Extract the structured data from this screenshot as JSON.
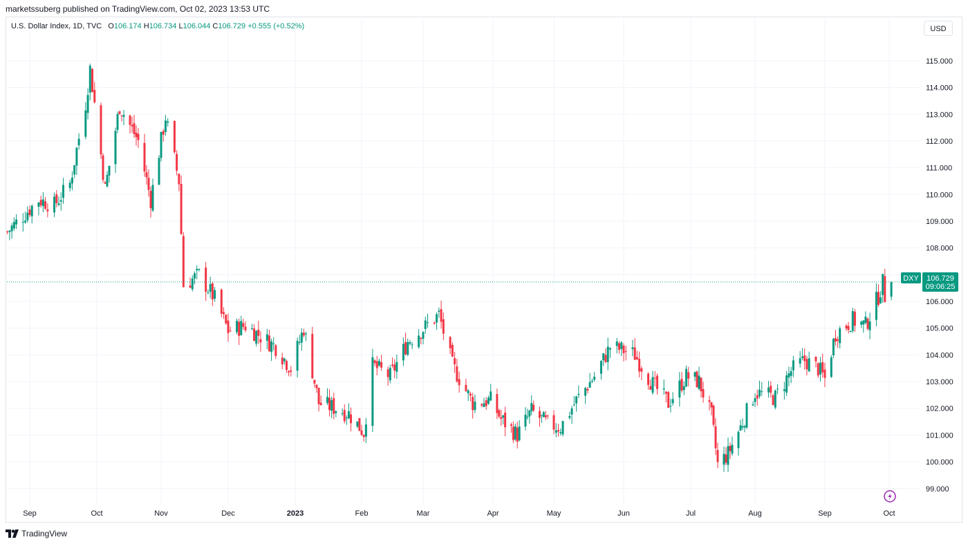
{
  "header": {
    "published_text": "marketssuberg published on TradingView.com, Oct 02, 2023 13:53 UTC"
  },
  "legend": {
    "symbol": "U.S. Dollar Index, 1D, TVC",
    "open_label": "O",
    "open": "106.174",
    "high_label": "H",
    "high": "106.734",
    "low_label": "L",
    "low": "106.044",
    "close_label": "C",
    "close": "106.729",
    "change": "+0.555 (+0.52%)"
  },
  "currency_button": "USD",
  "price_tag": {
    "ticker": "DXY",
    "price": "106.729",
    "countdown": "09:06:25"
  },
  "footer": {
    "brand": "TradingView"
  },
  "colors": {
    "up": "#089981",
    "down": "#f23645",
    "grid": "#f0f3fa",
    "price_line": "#089981",
    "alert_icon": "#9c27b0"
  },
  "chart_data": {
    "type": "candlestick",
    "symbol": "DXY",
    "interval": "1D",
    "ylim": [
      98.4,
      116.6
    ],
    "y_ticks": [
      "99.000",
      "100.000",
      "101.000",
      "102.000",
      "103.000",
      "104.000",
      "105.000",
      "106.000",
      "107.000",
      "108.000",
      "109.000",
      "110.000",
      "111.000",
      "112.000",
      "113.000",
      "114.000",
      "115.000"
    ],
    "x_ticks": [
      {
        "label": "Sep",
        "date": "2022-09-01"
      },
      {
        "label": "Oct",
        "date": "2022-10-01"
      },
      {
        "label": "Nov",
        "date": "2022-11-01"
      },
      {
        "label": "Dec",
        "date": "2022-12-01"
      },
      {
        "label": "2023",
        "date": "2023-01-01",
        "bold": true
      },
      {
        "label": "Feb",
        "date": "2023-02-01"
      },
      {
        "label": "Mar",
        "date": "2023-03-01"
      },
      {
        "label": "Apr",
        "date": "2023-04-01"
      },
      {
        "label": "May",
        "date": "2023-05-01"
      },
      {
        "label": "Jun",
        "date": "2023-06-01"
      },
      {
        "label": "Jul",
        "date": "2023-07-01"
      },
      {
        "label": "Aug",
        "date": "2023-08-01"
      },
      {
        "label": "Sep",
        "date": "2023-09-01"
      },
      {
        "label": "Oct",
        "date": "2023-10-01"
      }
    ],
    "last_price": 106.729,
    "approx_closes": [
      {
        "date": "2022-08-22",
        "close": 108.6
      },
      {
        "date": "2022-08-29",
        "close": 109.2
      },
      {
        "date": "2022-09-05",
        "close": 109.8
      },
      {
        "date": "2022-09-12",
        "close": 109.6
      },
      {
        "date": "2022-09-19",
        "close": 110.4
      },
      {
        "date": "2022-09-26",
        "close": 113.4
      },
      {
        "date": "2022-09-28",
        "close": 114.7
      },
      {
        "date": "2022-10-03",
        "close": 111.5
      },
      {
        "date": "2022-10-05",
        "close": 110.2
      },
      {
        "date": "2022-10-12",
        "close": 113.3
      },
      {
        "date": "2022-10-21",
        "close": 112.0
      },
      {
        "date": "2022-10-27",
        "close": 109.8
      },
      {
        "date": "2022-11-03",
        "close": 112.9
      },
      {
        "date": "2022-11-09",
        "close": 110.5
      },
      {
        "date": "2022-11-11",
        "close": 106.6
      },
      {
        "date": "2022-11-18",
        "close": 107.0
      },
      {
        "date": "2022-11-25",
        "close": 106.1
      },
      {
        "date": "2022-12-01",
        "close": 104.9
      },
      {
        "date": "2022-12-09",
        "close": 105.1
      },
      {
        "date": "2022-12-16",
        "close": 104.7
      },
      {
        "date": "2022-12-23",
        "close": 104.3
      },
      {
        "date": "2022-12-30",
        "close": 103.5
      },
      {
        "date": "2023-01-05",
        "close": 105.0
      },
      {
        "date": "2023-01-12",
        "close": 102.2
      },
      {
        "date": "2023-01-20",
        "close": 102.0
      },
      {
        "date": "2023-01-26",
        "close": 101.8
      },
      {
        "date": "2023-02-02",
        "close": 101.1
      },
      {
        "date": "2023-02-06",
        "close": 103.6
      },
      {
        "date": "2023-02-14",
        "close": 103.2
      },
      {
        "date": "2023-02-22",
        "close": 104.5
      },
      {
        "date": "2023-02-28",
        "close": 104.9
      },
      {
        "date": "2023-03-08",
        "close": 105.5
      },
      {
        "date": "2023-03-14",
        "close": 103.6
      },
      {
        "date": "2023-03-23",
        "close": 102.2
      },
      {
        "date": "2023-03-31",
        "close": 102.3
      },
      {
        "date": "2023-04-05",
        "close": 101.6
      },
      {
        "date": "2023-04-13",
        "close": 101.0
      },
      {
        "date": "2023-04-20",
        "close": 101.9
      },
      {
        "date": "2023-04-28",
        "close": 101.4
      },
      {
        "date": "2023-05-04",
        "close": 101.3
      },
      {
        "date": "2023-05-11",
        "close": 102.3
      },
      {
        "date": "2023-05-19",
        "close": 103.2
      },
      {
        "date": "2023-05-26",
        "close": 104.3
      },
      {
        "date": "2023-05-31",
        "close": 104.2
      },
      {
        "date": "2023-06-06",
        "close": 104.0
      },
      {
        "date": "2023-06-14",
        "close": 102.9
      },
      {
        "date": "2023-06-21",
        "close": 102.2
      },
      {
        "date": "2023-06-29",
        "close": 103.2
      },
      {
        "date": "2023-07-05",
        "close": 103.0
      },
      {
        "date": "2023-07-11",
        "close": 101.7
      },
      {
        "date": "2023-07-14",
        "close": 99.9
      },
      {
        "date": "2023-07-19",
        "close": 100.3
      },
      {
        "date": "2023-07-25",
        "close": 101.3
      },
      {
        "date": "2023-08-01",
        "close": 102.6
      },
      {
        "date": "2023-08-10",
        "close": 102.4
      },
      {
        "date": "2023-08-17",
        "close": 103.4
      },
      {
        "date": "2023-08-23",
        "close": 103.8
      },
      {
        "date": "2023-08-29",
        "close": 103.5
      },
      {
        "date": "2023-09-01",
        "close": 103.1
      },
      {
        "date": "2023-09-06",
        "close": 104.8
      },
      {
        "date": "2023-09-14",
        "close": 105.3
      },
      {
        "date": "2023-09-20",
        "close": 105.1
      },
      {
        "date": "2023-09-26",
        "close": 106.2
      },
      {
        "date": "2023-09-28",
        "close": 106.7
      },
      {
        "date": "2023-09-29",
        "close": 106.2
      },
      {
        "date": "2023-10-02",
        "close": 106.729
      }
    ]
  }
}
